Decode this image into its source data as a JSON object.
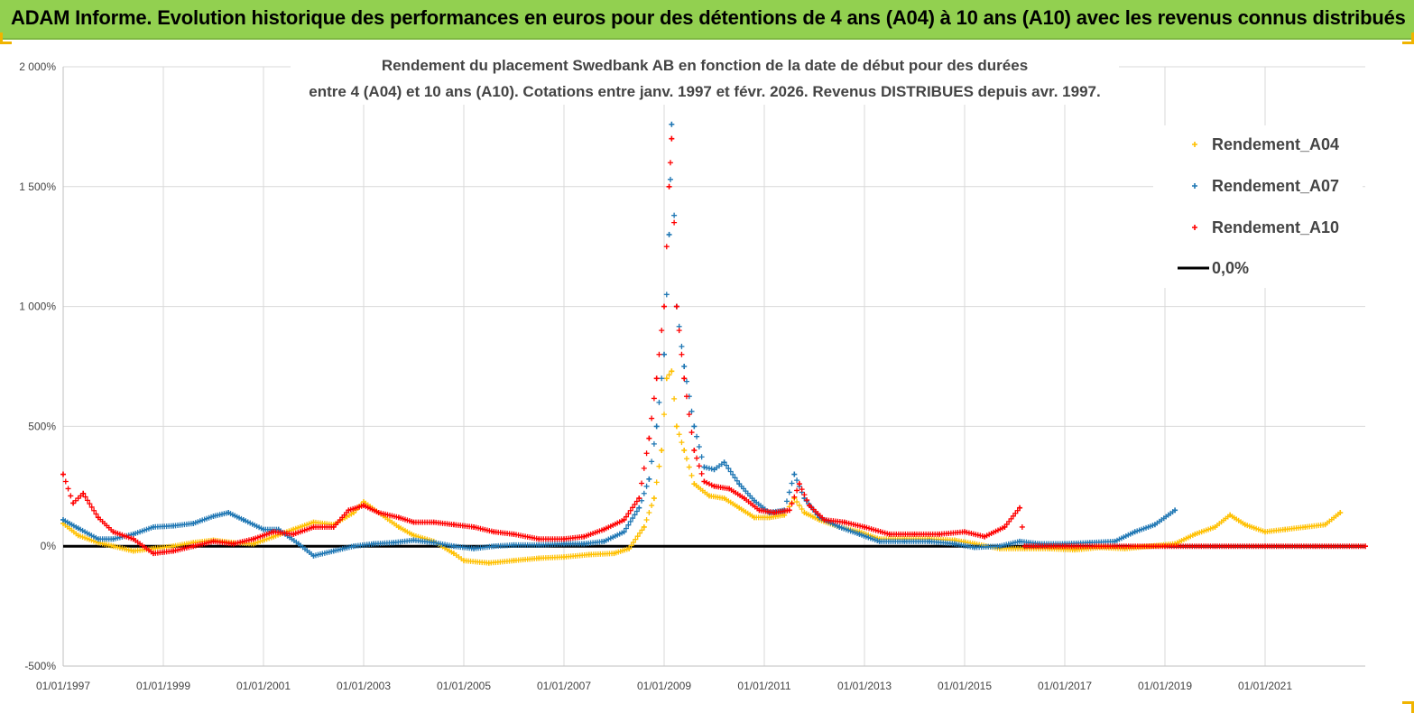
{
  "page": {
    "banner_title": "ADAM Informe. Evolution historique des performances en euros pour des détentions de 4 ans (A04) à 10 ans (A10) avec les revenus connus distribués",
    "banner_color": "#92d050"
  },
  "chart_data": {
    "type": "scatter",
    "title_line1": "Rendement du placement Swedbank AB en fonction de la date de début pour des durées",
    "title_line2": "entre 4 (A04) et 10 ans (A10). Cotations entre janv. 1997 et févr. 2026. Revenus DISTRIBUES depuis avr. 1997.",
    "xlabel": "",
    "ylabel": "",
    "xlim": [
      1997.0,
      2023.0
    ],
    "ylim": [
      -500,
      2000
    ],
    "grid": true,
    "legend_position": "top-right",
    "x_ticks": [
      1997,
      1999,
      2001,
      2003,
      2005,
      2007,
      2009,
      2011,
      2013,
      2015,
      2017,
      2019,
      2021
    ],
    "x_tick_labels": [
      "01/01/1997",
      "01/01/1999",
      "01/01/2001",
      "01/01/2003",
      "01/01/2005",
      "01/01/2007",
      "01/01/2009",
      "01/01/2011",
      "01/01/2013",
      "01/01/2015",
      "01/01/2017",
      "01/01/2019",
      "01/01/2021"
    ],
    "y_ticks": [
      2000,
      1500,
      1000,
      500,
      0,
      -500
    ],
    "y_tick_labels": [
      "2 000%",
      "1 500%",
      "1 000%",
      "500%",
      "0%",
      "-500%"
    ],
    "series": [
      {
        "name": "Rendement_A04",
        "color": "#ffc000",
        "marker": "+",
        "points": [
          [
            1997.0,
            95
          ],
          [
            1997.3,
            45
          ],
          [
            1997.7,
            15
          ],
          [
            1998.0,
            0
          ],
          [
            1998.4,
            -20
          ],
          [
            1998.8,
            -10
          ],
          [
            1999.2,
            0
          ],
          [
            1999.6,
            15
          ],
          [
            2000.0,
            25
          ],
          [
            2000.4,
            15
          ],
          [
            2000.8,
            10
          ],
          [
            2001.2,
            40
          ],
          [
            2001.6,
            70
          ],
          [
            2002.0,
            100
          ],
          [
            2002.4,
            90
          ],
          [
            2002.8,
            140
          ],
          [
            2003.0,
            185
          ],
          [
            2003.3,
            140
          ],
          [
            2003.7,
            80
          ],
          [
            2004.0,
            45
          ],
          [
            2004.4,
            20
          ],
          [
            2004.8,
            -30
          ],
          [
            2005.0,
            -60
          ],
          [
            2005.5,
            -70
          ],
          [
            2006.0,
            -60
          ],
          [
            2006.5,
            -50
          ],
          [
            2007.0,
            -45
          ],
          [
            2007.5,
            -35
          ],
          [
            2008.0,
            -30
          ],
          [
            2008.3,
            -10
          ],
          [
            2008.6,
            80
          ],
          [
            2008.8,
            200
          ],
          [
            2008.95,
            400
          ],
          [
            2009.05,
            700
          ],
          [
            2009.15,
            730
          ],
          [
            2009.25,
            500
          ],
          [
            2009.4,
            400
          ],
          [
            2009.6,
            260
          ],
          [
            2009.9,
            210
          ],
          [
            2010.2,
            200
          ],
          [
            2010.5,
            160
          ],
          [
            2010.8,
            120
          ],
          [
            2011.1,
            120
          ],
          [
            2011.4,
            130
          ],
          [
            2011.6,
            200
          ],
          [
            2011.8,
            140
          ],
          [
            2012.1,
            110
          ],
          [
            2012.5,
            80
          ],
          [
            2012.9,
            60
          ],
          [
            2013.3,
            30
          ],
          [
            2013.8,
            30
          ],
          [
            2014.3,
            30
          ],
          [
            2014.8,
            25
          ],
          [
            2015.2,
            10
          ],
          [
            2015.7,
            -10
          ],
          [
            2016.2,
            -10
          ],
          [
            2016.7,
            -10
          ],
          [
            2017.2,
            -15
          ],
          [
            2017.7,
            -5
          ],
          [
            2018.2,
            -10
          ],
          [
            2018.7,
            0
          ],
          [
            2019.2,
            10
          ],
          [
            2019.6,
            50
          ],
          [
            2020.0,
            80
          ],
          [
            2020.3,
            130
          ],
          [
            2020.6,
            90
          ],
          [
            2021.0,
            60
          ],
          [
            2021.4,
            70
          ],
          [
            2021.8,
            80
          ],
          [
            2022.2,
            90
          ],
          [
            2022.5,
            140
          ]
        ]
      },
      {
        "name": "Rendement_A07",
        "color": "#1f77b4",
        "marker": "+",
        "points": [
          [
            1997.0,
            110
          ],
          [
            1997.3,
            75
          ],
          [
            1997.7,
            30
          ],
          [
            1998.0,
            30
          ],
          [
            1998.4,
            50
          ],
          [
            1998.8,
            80
          ],
          [
            1999.2,
            85
          ],
          [
            1999.6,
            95
          ],
          [
            2000.0,
            125
          ],
          [
            2000.3,
            140
          ],
          [
            2000.6,
            110
          ],
          [
            2001.0,
            70
          ],
          [
            2001.3,
            70
          ],
          [
            2001.7,
            10
          ],
          [
            2002.0,
            -40
          ],
          [
            2002.4,
            -20
          ],
          [
            2002.8,
            0
          ],
          [
            2003.2,
            10
          ],
          [
            2003.6,
            15
          ],
          [
            2004.0,
            25
          ],
          [
            2004.4,
            15
          ],
          [
            2004.8,
            0
          ],
          [
            2005.2,
            -10
          ],
          [
            2005.6,
            0
          ],
          [
            2006.0,
            5
          ],
          [
            2006.5,
            5
          ],
          [
            2007.0,
            10
          ],
          [
            2007.4,
            10
          ],
          [
            2007.8,
            20
          ],
          [
            2008.2,
            60
          ],
          [
            2008.5,
            160
          ],
          [
            2008.7,
            280
          ],
          [
            2008.85,
            500
          ],
          [
            2009.0,
            800
          ],
          [
            2009.1,
            1300
          ],
          [
            2009.15,
            1760
          ],
          [
            2009.25,
            1000
          ],
          [
            2009.4,
            750
          ],
          [
            2009.6,
            500
          ],
          [
            2009.8,
            330
          ],
          [
            2010.0,
            320
          ],
          [
            2010.2,
            350
          ],
          [
            2010.5,
            260
          ],
          [
            2010.8,
            190
          ],
          [
            2011.1,
            140
          ],
          [
            2011.4,
            150
          ],
          [
            2011.6,
            300
          ],
          [
            2011.8,
            200
          ],
          [
            2012.1,
            120
          ],
          [
            2012.5,
            80
          ],
          [
            2012.9,
            50
          ],
          [
            2013.3,
            20
          ],
          [
            2013.8,
            20
          ],
          [
            2014.3,
            20
          ],
          [
            2014.8,
            10
          ],
          [
            2015.2,
            -5
          ],
          [
            2015.7,
            0
          ],
          [
            2016.1,
            20
          ],
          [
            2016.5,
            10
          ],
          [
            2017.0,
            10
          ],
          [
            2017.5,
            15
          ],
          [
            2018.0,
            20
          ],
          [
            2018.4,
            60
          ],
          [
            2018.8,
            90
          ],
          [
            2019.2,
            150
          ]
        ]
      },
      {
        "name": "Rendement_A10",
        "color": "#ff0000",
        "marker": "+",
        "points": [
          [
            1997.0,
            300
          ],
          [
            1997.2,
            180
          ],
          [
            1997.4,
            220
          ],
          [
            1997.7,
            120
          ],
          [
            1998.0,
            60
          ],
          [
            1998.4,
            30
          ],
          [
            1998.8,
            -30
          ],
          [
            1999.2,
            -20
          ],
          [
            1999.6,
            0
          ],
          [
            2000.0,
            20
          ],
          [
            2000.4,
            10
          ],
          [
            2000.8,
            30
          ],
          [
            2001.2,
            60
          ],
          [
            2001.6,
            50
          ],
          [
            2002.0,
            80
          ],
          [
            2002.4,
            80
          ],
          [
            2002.7,
            150
          ],
          [
            2003.0,
            170
          ],
          [
            2003.3,
            140
          ],
          [
            2003.7,
            120
          ],
          [
            2004.0,
            100
          ],
          [
            2004.4,
            100
          ],
          [
            2004.8,
            90
          ],
          [
            2005.2,
            80
          ],
          [
            2005.6,
            60
          ],
          [
            2006.0,
            50
          ],
          [
            2006.5,
            30
          ],
          [
            2007.0,
            30
          ],
          [
            2007.4,
            40
          ],
          [
            2007.8,
            70
          ],
          [
            2008.2,
            110
          ],
          [
            2008.5,
            200
          ],
          [
            2008.7,
            450
          ],
          [
            2008.85,
            700
          ],
          [
            2009.0,
            1000
          ],
          [
            2009.1,
            1500
          ],
          [
            2009.15,
            1700
          ],
          [
            2009.25,
            1000
          ],
          [
            2009.4,
            700
          ],
          [
            2009.6,
            400
          ],
          [
            2009.8,
            270
          ],
          [
            2010.0,
            250
          ],
          [
            2010.3,
            240
          ],
          [
            2010.6,
            200
          ],
          [
            2010.9,
            150
          ],
          [
            2011.2,
            140
          ],
          [
            2011.5,
            150
          ],
          [
            2011.7,
            260
          ],
          [
            2011.9,
            170
          ],
          [
            2012.2,
            110
          ],
          [
            2012.6,
            100
          ],
          [
            2013.0,
            80
          ],
          [
            2013.5,
            50
          ],
          [
            2014.0,
            50
          ],
          [
            2014.5,
            50
          ],
          [
            2015.0,
            60
          ],
          [
            2015.4,
            40
          ],
          [
            2015.8,
            80
          ],
          [
            2016.1,
            160
          ],
          [
            2016.2,
            0
          ],
          [
            2017.0,
            0
          ],
          [
            2018.0,
            0
          ],
          [
            2019.0,
            0
          ],
          [
            2020.0,
            0
          ],
          [
            2021.0,
            0
          ],
          [
            2022.0,
            0
          ],
          [
            2023.0,
            0
          ]
        ]
      }
    ],
    "reference_line": {
      "name": "0,0%",
      "y": 0,
      "color": "#000000"
    }
  }
}
